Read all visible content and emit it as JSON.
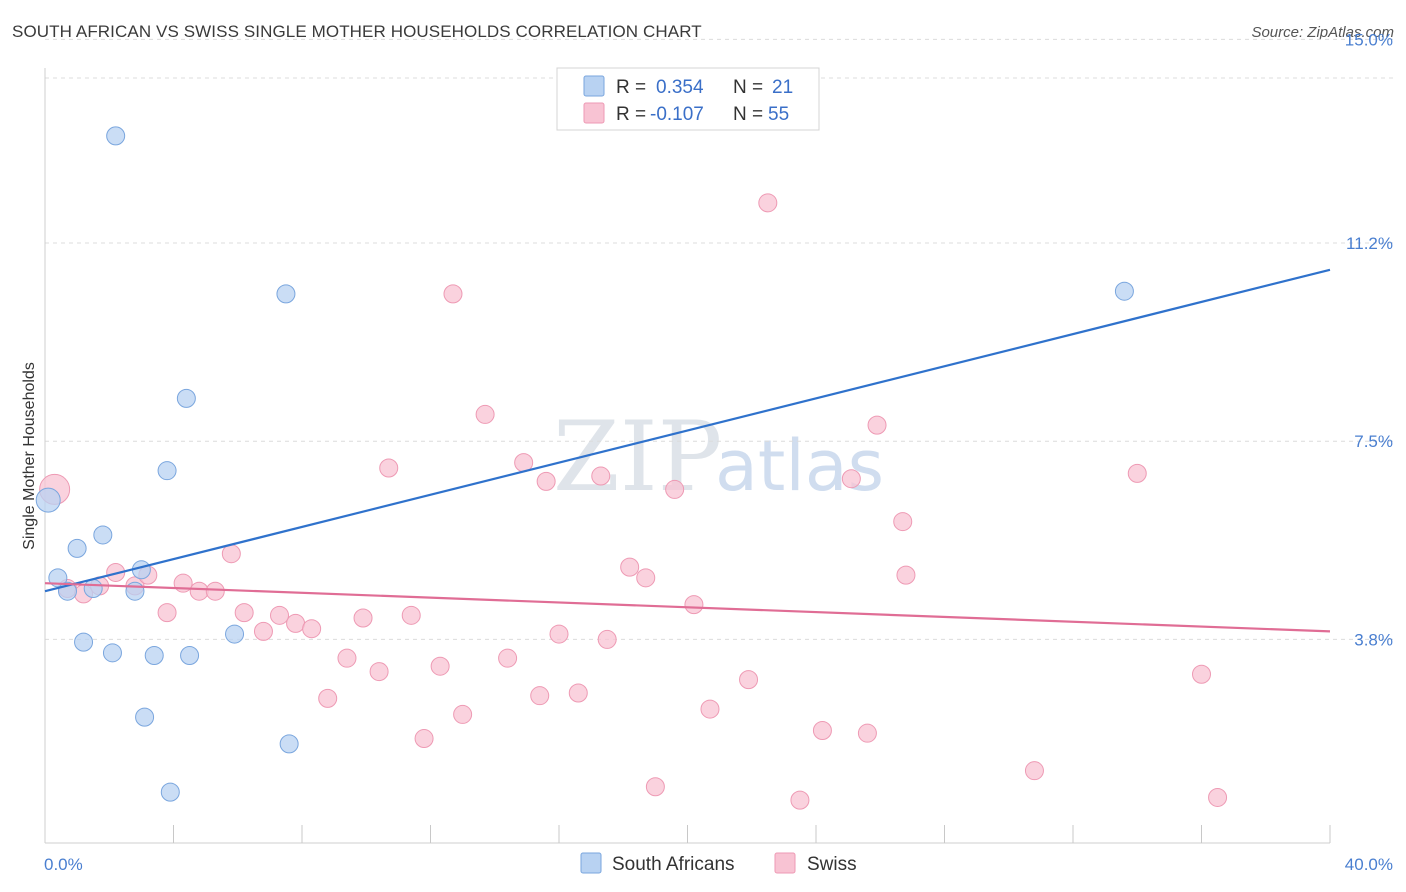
{
  "header": {
    "title": "SOUTH AFRICAN VS SWISS SINGLE MOTHER HOUSEHOLDS CORRELATION CHART",
    "source": "Source: ZipAtlas.com"
  },
  "watermark": {
    "zip": "ZIP",
    "atlas": "atlas"
  },
  "legend": {
    "rows": [
      {
        "r_label": "R =",
        "r_value": "0.354",
        "n_label": "N =",
        "n_value": "21"
      },
      {
        "r_label": "R =",
        "r_value": "-0.107",
        "n_label": "N =",
        "n_value": "55"
      }
    ]
  },
  "colors": {
    "blue_fill": "#b8d2f2",
    "blue_stroke": "#7aa6de",
    "blue_line": "#2f72cc",
    "pink_fill": "#f8c3d3",
    "pink_stroke": "#ee9ab4",
    "pink_line": "#e06d95",
    "grid": "#dcdcdc",
    "tick_text": "#4a7fd0"
  },
  "chart_data": {
    "type": "scatter",
    "title": "SOUTH AFRICAN VS SWISS SINGLE MOTHER HOUSEHOLDS CORRELATION CHART",
    "xlabel": "",
    "ylabel": "Single Mother Households",
    "xlim": [
      0,
      40
    ],
    "ylim": [
      0,
      15.4
    ],
    "x_tick_labels": [
      "0.0%",
      "40.0%"
    ],
    "y_ticks": [
      3.8,
      7.5,
      11.2,
      15.0
    ],
    "y_tick_labels": [
      "3.8%",
      "7.5%",
      "11.2%",
      "15.0%"
    ],
    "series": [
      {
        "name": "South Africans",
        "color": "#b8d2f2",
        "trend": {
          "x": [
            0,
            40
          ],
          "y": [
            4.7,
            10.7
          ]
        },
        "points": [
          [
            0.1,
            6.4,
            12
          ],
          [
            0.4,
            4.95,
            9
          ],
          [
            0.7,
            4.7,
            9
          ],
          [
            1.0,
            5.5,
            9
          ],
          [
            1.2,
            3.75,
            9
          ],
          [
            1.5,
            4.75,
            9
          ],
          [
            1.8,
            5.75,
            9
          ],
          [
            2.1,
            3.55,
            9
          ],
          [
            2.2,
            13.2,
            9
          ],
          [
            2.8,
            4.7,
            9
          ],
          [
            3.0,
            5.1,
            9
          ],
          [
            3.1,
            2.35,
            9
          ],
          [
            3.4,
            3.5,
            9
          ],
          [
            3.8,
            6.95,
            9
          ],
          [
            3.9,
            0.95,
            9
          ],
          [
            4.4,
            8.3,
            9
          ],
          [
            4.5,
            3.5,
            9
          ],
          [
            5.9,
            3.9,
            9
          ],
          [
            7.5,
            10.25,
            9
          ],
          [
            7.6,
            1.85,
            9
          ],
          [
            33.6,
            10.3,
            9
          ]
        ]
      },
      {
        "name": "Swiss",
        "color": "#f8c3d3",
        "trend": {
          "x": [
            0,
            40
          ],
          "y": [
            4.85,
            3.95
          ]
        },
        "points": [
          [
            0.3,
            6.6,
            15
          ],
          [
            0.7,
            4.75,
            9
          ],
          [
            1.2,
            4.65,
            9
          ],
          [
            1.7,
            4.8,
            9
          ],
          [
            2.2,
            5.05,
            9
          ],
          [
            2.8,
            4.8,
            9
          ],
          [
            3.2,
            5.0,
            9
          ],
          [
            3.8,
            4.3,
            9
          ],
          [
            4.3,
            4.85,
            9
          ],
          [
            4.8,
            4.7,
            9
          ],
          [
            5.3,
            4.7,
            9
          ],
          [
            5.8,
            5.4,
            9
          ],
          [
            6.2,
            4.3,
            9
          ],
          [
            6.8,
            3.95,
            9
          ],
          [
            7.3,
            4.25,
            9
          ],
          [
            7.8,
            4.1,
            9
          ],
          [
            8.3,
            4.0,
            9
          ],
          [
            8.8,
            2.7,
            9
          ],
          [
            9.4,
            3.45,
            9
          ],
          [
            9.9,
            4.2,
            9
          ],
          [
            10.4,
            3.2,
            9
          ],
          [
            10.7,
            7.0,
            9
          ],
          [
            11.4,
            4.25,
            9
          ],
          [
            11.8,
            1.95,
            9
          ],
          [
            12.3,
            3.3,
            9
          ],
          [
            12.7,
            10.25,
            9
          ],
          [
            13.0,
            2.4,
            9
          ],
          [
            13.7,
            8.0,
            9
          ],
          [
            14.4,
            3.45,
            9
          ],
          [
            14.9,
            7.1,
            9
          ],
          [
            15.4,
            2.75,
            9
          ],
          [
            15.6,
            6.75,
            9
          ],
          [
            16.0,
            3.9,
            9
          ],
          [
            16.6,
            2.8,
            9
          ],
          [
            17.3,
            6.85,
            9
          ],
          [
            17.5,
            3.8,
            9
          ],
          [
            18.2,
            5.15,
            9
          ],
          [
            18.7,
            4.95,
            9
          ],
          [
            19.0,
            1.05,
            9
          ],
          [
            19.6,
            6.6,
            9
          ],
          [
            20.2,
            4.45,
            9
          ],
          [
            20.7,
            2.5,
            9
          ],
          [
            21.9,
            3.05,
            9
          ],
          [
            22.5,
            11.95,
            9
          ],
          [
            23.5,
            0.8,
            9
          ],
          [
            24.2,
            2.1,
            9
          ],
          [
            25.1,
            6.8,
            9
          ],
          [
            25.6,
            2.05,
            9
          ],
          [
            25.9,
            7.8,
            9
          ],
          [
            26.7,
            6.0,
            9
          ],
          [
            26.8,
            5.0,
            9
          ],
          [
            30.8,
            1.35,
            9
          ],
          [
            34.0,
            6.9,
            9
          ],
          [
            36.0,
            3.15,
            9
          ],
          [
            36.5,
            0.85,
            9
          ]
        ]
      }
    ]
  }
}
